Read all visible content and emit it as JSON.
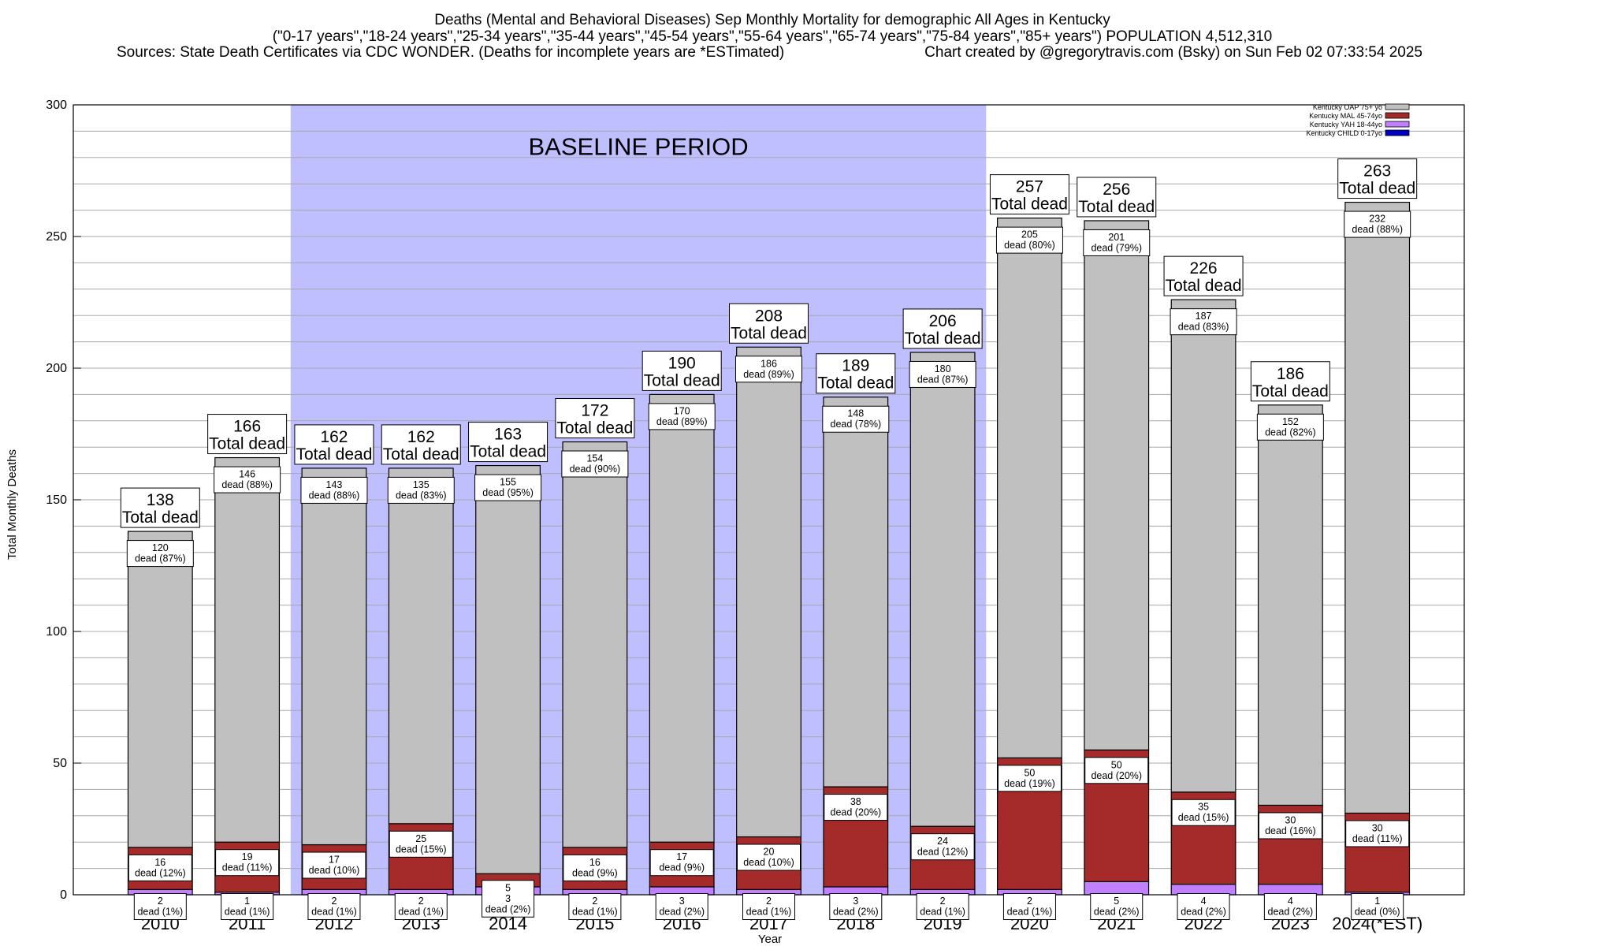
{
  "chart_data": {
    "type": "bar",
    "stacked": true,
    "title_lines": [
      "Deaths (Mental and Behavioral Diseases) Sep Monthly Mortality for demographic All Ages in Kentucky",
      "(\"0-17 years\",\"18-24 years\",\"25-34 years\",\"35-44 years\",\"45-54 years\",\"55-64 years\",\"65-74 years\",\"75-84 years\",\"85+ years\") POPULATION 4,512,310",
      "Sources: State Death Certificates via CDC WONDER. (Deaths for incomplete years are *ESTimated)"
    ],
    "credit": "Chart created by @gregorytravis.com (Bsky) on Sun Feb 02 07:33:54 2025",
    "xlabel": "Year",
    "ylabel": "Total Monthly Deaths",
    "ylim": [
      0,
      300
    ],
    "yticks": [
      0,
      50,
      100,
      150,
      200,
      250,
      300
    ],
    "grid": true,
    "legend_position": "top-right",
    "baseline": {
      "label": "BASELINE PERIOD",
      "start": "2012",
      "end": "2019"
    },
    "categories": [
      "2010",
      "2011",
      "2012",
      "2013",
      "2014",
      "2015",
      "2016",
      "2017",
      "2018",
      "2019",
      "2020",
      "2021",
      "2022",
      "2023",
      "2024(*EST)"
    ],
    "series": [
      {
        "name": "Kentucky CHILD 0-17yo",
        "color": "#0000c0",
        "values": [
          0,
          0,
          0,
          0,
          0,
          0,
          0,
          0,
          0,
          0,
          0,
          0,
          0,
          0,
          0
        ]
      },
      {
        "name": "Kentucky YAH 18-44yo",
        "color": "#c080ff",
        "values": [
          2,
          1,
          2,
          2,
          3,
          2,
          3,
          2,
          3,
          2,
          2,
          5,
          4,
          4,
          1
        ]
      },
      {
        "name": "Kentucky MAL 45-74yo",
        "color": "#a52a2a",
        "values": [
          16,
          19,
          17,
          25,
          5,
          16,
          17,
          20,
          38,
          24,
          50,
          50,
          35,
          30,
          30
        ]
      },
      {
        "name": "Kentucky OAP 75+ yo",
        "color": "#c0c0c0",
        "values": [
          120,
          146,
          143,
          135,
          155,
          154,
          170,
          186,
          148,
          180,
          205,
          201,
          187,
          152,
          232
        ]
      }
    ],
    "totals": [
      138,
      166,
      162,
      162,
      163,
      172,
      190,
      208,
      189,
      206,
      257,
      256,
      226,
      186,
      263
    ],
    "total_suffix": "Total dead",
    "segment_labels": {
      "Kentucky YAH 18-44yo": [
        "dead (1%)",
        "dead (1%)",
        "dead (1%)",
        "dead (1%)",
        "dead (2%)",
        "dead (1%)",
        "dead (2%)",
        "dead (1%)",
        "dead (2%)",
        "dead (1%)",
        "dead (1%)",
        "dead (2%)",
        "dead (2%)",
        "dead (2%)",
        "dead (0%)"
      ],
      "Kentucky MAL 45-74yo": [
        "dead (12%)",
        "dead (11%)",
        "dead (10%)",
        "dead (15%)",
        "",
        "dead (9%)",
        "dead (9%)",
        "dead (10%)",
        "dead (20%)",
        "dead (12%)",
        "dead (19%)",
        "dead (20%)",
        "dead (15%)",
        "dead (16%)",
        "dead (11%)"
      ],
      "Kentucky OAP 75+ yo": [
        "dead (87%)",
        "dead (88%)",
        "dead (88%)",
        "dead (83%)",
        "dead (95%)",
        "dead (90%)",
        "dead (89%)",
        "dead (89%)",
        "dead (78%)",
        "dead (87%)",
        "dead (80%)",
        "dead (79%)",
        "dead (83%)",
        "dead (82%)",
        "dead (88%)"
      ]
    }
  }
}
